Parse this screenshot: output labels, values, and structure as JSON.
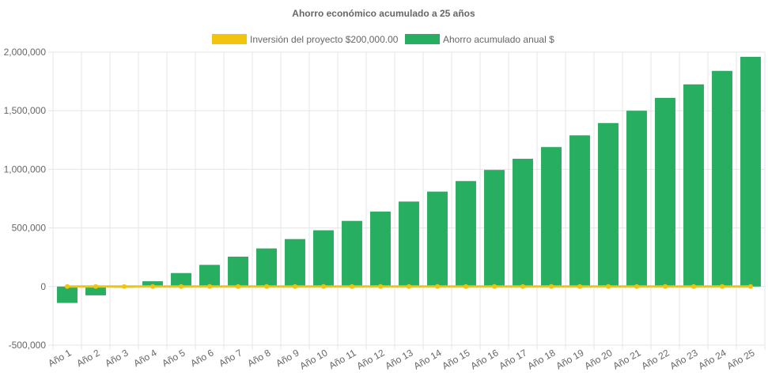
{
  "chart_data": {
    "type": "bar",
    "title": "Ahorro económico acumulado a 25 años",
    "xlabel": "",
    "ylabel": "",
    "categories": [
      "Año 1",
      "Año 2",
      "Año 3",
      "Año 4",
      "Año 5",
      "Año 6",
      "Año 7",
      "Año 8",
      "Año 9",
      "Año 10",
      "Año 11",
      "Año 12",
      "Año 13",
      "Año 14",
      "Año 15",
      "Año 16",
      "Año 17",
      "Año 18",
      "Año 19",
      "Año 20",
      "Año 21",
      "Año 22",
      "Año 23",
      "Año 24",
      "Año 25"
    ],
    "ylim": [
      -500000,
      2000000
    ],
    "yticks": [
      -500000,
      0,
      500000,
      1000000,
      1500000,
      2000000
    ],
    "ytick_labels": [
      "-500,000",
      "0",
      "500,000",
      "1,000,000",
      "1,500,000",
      "2,000,000"
    ],
    "grid": true,
    "legend_position": "top",
    "series": [
      {
        "name": "Inversión del proyecto $200,000.00",
        "type": "line",
        "color": "#f1c40f",
        "values": [
          0,
          0,
          0,
          0,
          0,
          0,
          0,
          0,
          0,
          0,
          0,
          0,
          0,
          0,
          0,
          0,
          0,
          0,
          0,
          0,
          0,
          0,
          0,
          0,
          0
        ]
      },
      {
        "name": "Ahorro acumulado anual $",
        "type": "bar",
        "color": "#27ae60",
        "values": [
          -140000,
          -75000,
          -10000,
          45000,
          115000,
          185000,
          255000,
          325000,
          405000,
          480000,
          560000,
          640000,
          725000,
          810000,
          900000,
          995000,
          1090000,
          1190000,
          1290000,
          1395000,
          1500000,
          1610000,
          1725000,
          1840000,
          1960000
        ]
      }
    ]
  }
}
